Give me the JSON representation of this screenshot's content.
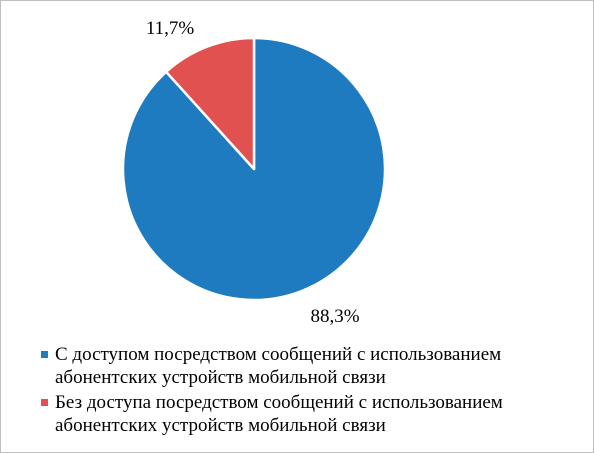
{
  "chart_data": {
    "type": "pie",
    "title": "",
    "slices": [
      {
        "label_lines": [
          "С доступом посредством сообщений с использованием",
          "абонентских устройств мобильной связи"
        ],
        "value": 88.3,
        "value_label": "88,3%",
        "color": "#1f7bbf"
      },
      {
        "label_lines": [
          "Без доступа посредством сообщений с использованием",
          "абонентских устройств мобильной связи"
        ],
        "value": 11.7,
        "value_label": "11,7%",
        "color": "#e05150"
      }
    ],
    "start_angle": "12 o'clock",
    "direction": "clockwise",
    "legend_position": "bottom"
  }
}
